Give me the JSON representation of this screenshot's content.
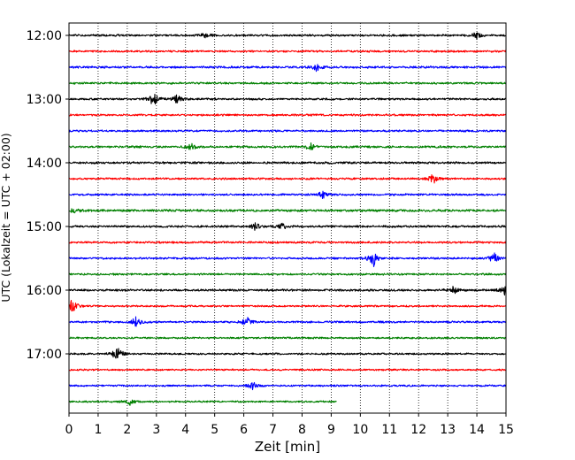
{
  "chart_data": {
    "type": "line",
    "title": "",
    "xlabel": "Zeit  [min]",
    "ylabel": "UTC (Lokalzeit = UTC + 02:00)",
    "xlim": [
      0,
      15
    ],
    "x_ticks": [
      "0",
      "1",
      "2",
      "3",
      "4",
      "5",
      "6",
      "7",
      "8",
      "9",
      "10",
      "11",
      "12",
      "13",
      "14",
      "15"
    ],
    "y_ticks": [
      "12:00",
      "13:00",
      "14:00",
      "15:00",
      "16:00",
      "17:00"
    ],
    "grid": "vertical-dotted",
    "legend": "none",
    "colors": [
      "#000000",
      "#ff0000",
      "#0000ff",
      "#008000"
    ],
    "traces": [
      {
        "start": "12:00",
        "color": "#000000",
        "x_end": 15,
        "amplitude": 0.6,
        "events": [
          {
            "x": 4.7,
            "amp": 1.2
          },
          {
            "x": 14.0,
            "amp": 1.2
          }
        ]
      },
      {
        "start": "12:15",
        "color": "#ff0000",
        "x_end": 15,
        "amplitude": 0.6,
        "events": []
      },
      {
        "start": "12:30",
        "color": "#0000ff",
        "x_end": 15,
        "amplitude": 0.65,
        "events": [
          {
            "x": 8.5,
            "amp": 1.3
          }
        ]
      },
      {
        "start": "12:45",
        "color": "#008000",
        "x_end": 15,
        "amplitude": 0.6,
        "events": []
      },
      {
        "start": "13:00",
        "color": "#000000",
        "x_end": 15,
        "amplitude": 0.6,
        "events": [
          {
            "x": 2.9,
            "amp": 2.5
          },
          {
            "x": 3.7,
            "amp": 1.5
          }
        ]
      },
      {
        "start": "13:15",
        "color": "#ff0000",
        "x_end": 15,
        "amplitude": 0.6,
        "events": []
      },
      {
        "start": "13:30",
        "color": "#0000ff",
        "x_end": 15,
        "amplitude": 0.6,
        "events": []
      },
      {
        "start": "13:45",
        "color": "#008000",
        "x_end": 15,
        "amplitude": 0.65,
        "events": [
          {
            "x": 4.2,
            "amp": 1.4
          },
          {
            "x": 8.3,
            "amp": 1.2
          }
        ]
      },
      {
        "start": "14:00",
        "color": "#000000",
        "x_end": 15,
        "amplitude": 0.65,
        "events": []
      },
      {
        "start": "14:15",
        "color": "#ff0000",
        "x_end": 15,
        "amplitude": 0.6,
        "events": [
          {
            "x": 12.5,
            "amp": 1.6
          }
        ]
      },
      {
        "start": "14:30",
        "color": "#0000ff",
        "x_end": 15,
        "amplitude": 0.6,
        "events": [
          {
            "x": 8.7,
            "amp": 1.3
          }
        ]
      },
      {
        "start": "14:45",
        "color": "#008000",
        "x_end": 15,
        "amplitude": 0.7,
        "events": [
          {
            "x": 0.2,
            "amp": 1.3
          }
        ]
      },
      {
        "start": "15:00",
        "color": "#000000",
        "x_end": 15,
        "amplitude": 0.65,
        "events": [
          {
            "x": 6.4,
            "amp": 1.4
          },
          {
            "x": 7.3,
            "amp": 1.2
          }
        ]
      },
      {
        "start": "15:15",
        "color": "#ff0000",
        "x_end": 15,
        "amplitude": 0.6,
        "events": []
      },
      {
        "start": "15:30",
        "color": "#0000ff",
        "x_end": 15,
        "amplitude": 0.6,
        "events": [
          {
            "x": 10.45,
            "amp": 2.8
          },
          {
            "x": 14.6,
            "amp": 1.7
          }
        ]
      },
      {
        "start": "15:45",
        "color": "#008000",
        "x_end": 15,
        "amplitude": 0.6,
        "events": []
      },
      {
        "start": "16:00",
        "color": "#000000",
        "x_end": 15,
        "amplitude": 0.65,
        "events": [
          {
            "x": 13.2,
            "amp": 1.4
          },
          {
            "x": 14.95,
            "amp": 1.7
          }
        ]
      },
      {
        "start": "16:15",
        "color": "#ff0000",
        "x_end": 15,
        "amplitude": 0.55,
        "events": [
          {
            "x": 0.1,
            "amp": 2.6
          }
        ]
      },
      {
        "start": "16:30",
        "color": "#0000ff",
        "x_end": 15,
        "amplitude": 0.6,
        "events": [
          {
            "x": 2.3,
            "amp": 1.7
          },
          {
            "x": 6.1,
            "amp": 1.8
          }
        ]
      },
      {
        "start": "16:45",
        "color": "#008000",
        "x_end": 15,
        "amplitude": 0.55,
        "events": []
      },
      {
        "start": "17:00",
        "color": "#000000",
        "x_end": 15,
        "amplitude": 0.55,
        "events": [
          {
            "x": 1.65,
            "amp": 3.0
          }
        ]
      },
      {
        "start": "17:15",
        "color": "#ff0000",
        "x_end": 15,
        "amplitude": 0.55,
        "events": []
      },
      {
        "start": "17:30",
        "color": "#0000ff",
        "x_end": 15,
        "amplitude": 0.55,
        "events": [
          {
            "x": 6.3,
            "amp": 1.2
          }
        ]
      },
      {
        "start": "17:45",
        "color": "#008000",
        "x_end": 9.2,
        "amplitude": 0.55,
        "events": [
          {
            "x": 2.1,
            "amp": 1.1
          }
        ]
      }
    ]
  }
}
